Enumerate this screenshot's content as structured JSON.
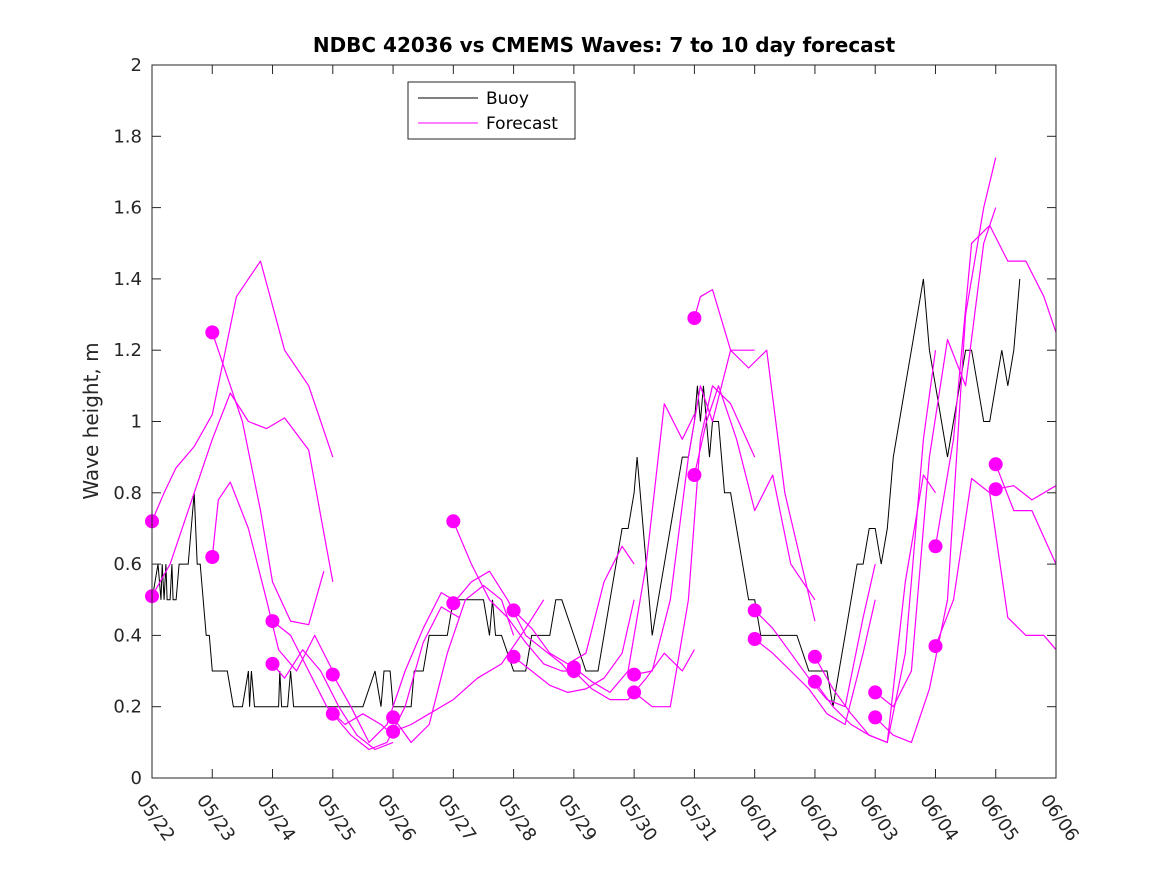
{
  "chart_data": {
    "type": "line",
    "title": "NDBC 42036 vs CMEMS Waves: 7 to 10 day forecast",
    "xlabel": "",
    "ylabel": "Wave height, m",
    "xlim": [
      0,
      15
    ],
    "ylim": [
      0,
      2
    ],
    "x_unit": "days from 05/22 00:00",
    "xticks": [
      0,
      1,
      2,
      3,
      4,
      5,
      6,
      7,
      8,
      9,
      10,
      11,
      12,
      13,
      14,
      15
    ],
    "xtick_labels": [
      "05/22",
      "05/23",
      "05/24",
      "05/25",
      "05/26",
      "05/27",
      "05/28",
      "05/29",
      "05/30",
      "05/31",
      "06/01",
      "06/02",
      "06/03",
      "06/04",
      "06/05",
      "06/06"
    ],
    "yticks": [
      0,
      0.2,
      0.4,
      0.6,
      0.8,
      1,
      1.2,
      1.4,
      1.6,
      1.8,
      2
    ],
    "ytick_labels": [
      "0",
      "0.2",
      "0.4",
      "0.6",
      "0.8",
      "1",
      "1.2",
      "1.4",
      "1.6",
      "1.8",
      "2"
    ],
    "grid": false,
    "legend": {
      "position": "top-center",
      "entries": [
        "Buoy",
        "Forecast"
      ]
    },
    "colors": {
      "buoy": "#000000",
      "forecast": "#ff00ff",
      "axes": "#262626"
    },
    "buoy": {
      "name": "Buoy",
      "x": [
        0.0,
        0.1,
        0.15,
        0.17,
        0.2,
        0.23,
        0.25,
        0.28,
        0.3,
        0.33,
        0.35,
        0.4,
        0.45,
        0.5,
        0.55,
        0.6,
        0.65,
        0.7,
        0.75,
        0.8,
        0.85,
        0.9,
        0.95,
        1.0,
        1.05,
        1.1,
        1.25,
        1.35,
        1.5,
        1.6,
        1.62,
        1.65,
        1.7,
        1.8,
        1.9,
        2.0,
        2.1,
        2.12,
        2.15,
        2.2,
        2.25,
        2.3,
        2.35,
        2.5,
        2.7,
        2.9,
        3.0,
        3.2,
        3.5,
        3.7,
        3.8,
        3.85,
        3.95,
        4.0,
        4.05,
        4.1,
        4.2,
        4.3,
        4.35,
        4.4,
        4.5,
        4.6,
        4.7,
        4.8,
        4.9,
        5.0,
        5.3,
        5.5,
        5.6,
        5.65,
        5.7,
        5.8,
        6.0,
        6.1,
        6.2,
        6.3,
        6.4,
        6.5,
        6.6,
        6.7,
        6.8,
        7.0,
        7.2,
        7.4,
        7.5,
        7.6,
        7.8,
        7.9,
        8.0,
        8.05,
        8.1,
        8.15,
        8.2,
        8.25,
        8.3,
        8.4,
        8.5,
        8.6,
        8.7,
        8.8,
        8.9,
        9.0,
        9.05,
        9.1,
        9.15,
        9.2,
        9.25,
        9.3,
        9.35,
        9.4,
        9.45,
        9.5,
        9.6,
        9.7,
        9.8,
        9.9,
        10.0,
        10.1,
        10.3,
        10.5,
        10.7,
        10.9,
        11.1,
        11.2,
        11.3,
        11.4,
        11.5,
        11.6,
        11.7,
        11.8,
        11.9,
        12.0,
        12.1,
        12.2,
        12.3,
        12.4,
        12.5,
        12.6,
        12.7,
        12.8,
        12.9,
        13.0,
        13.1,
        13.2,
        13.3,
        13.4,
        13.5,
        13.6,
        13.7,
        13.8,
        13.9,
        14.0,
        14.1,
        14.2,
        14.3,
        14.35,
        14.4
      ],
      "y": [
        0.5,
        0.6,
        0.5,
        0.6,
        0.5,
        0.6,
        0.5,
        0.5,
        0.5,
        0.6,
        0.5,
        0.5,
        0.6,
        0.6,
        0.6,
        0.6,
        0.7,
        0.8,
        0.6,
        0.6,
        0.5,
        0.4,
        0.4,
        0.3,
        0.3,
        0.3,
        0.3,
        0.2,
        0.2,
        0.3,
        0.2,
        0.3,
        0.2,
        0.2,
        0.2,
        0.2,
        0.2,
        0.3,
        0.2,
        0.2,
        0.2,
        0.3,
        0.2,
        0.2,
        0.2,
        0.2,
        0.2,
        0.2,
        0.2,
        0.3,
        0.2,
        0.3,
        0.3,
        0.2,
        0.2,
        0.2,
        0.2,
        0.2,
        0.3,
        0.3,
        0.3,
        0.4,
        0.4,
        0.4,
        0.4,
        0.5,
        0.5,
        0.5,
        0.4,
        0.5,
        0.4,
        0.4,
        0.3,
        0.3,
        0.3,
        0.4,
        0.4,
        0.4,
        0.4,
        0.5,
        0.5,
        0.4,
        0.3,
        0.3,
        0.4,
        0.5,
        0.7,
        0.7,
        0.8,
        0.9,
        0.8,
        0.7,
        0.6,
        0.5,
        0.4,
        0.5,
        0.6,
        0.7,
        0.8,
        0.9,
        0.9,
        1.0,
        1.1,
        1.0,
        1.1,
        1.0,
        0.9,
        1.0,
        1.0,
        1.0,
        0.9,
        0.8,
        0.8,
        0.7,
        0.6,
        0.5,
        0.5,
        0.4,
        0.4,
        0.4,
        0.4,
        0.3,
        0.3,
        0.3,
        0.2,
        0.3,
        0.4,
        0.5,
        0.6,
        0.6,
        0.7,
        0.7,
        0.6,
        0.7,
        0.9,
        1.0,
        1.1,
        1.2,
        1.3,
        1.4,
        1.2,
        1.1,
        1.0,
        0.9,
        1.0,
        1.1,
        1.2,
        1.2,
        1.1,
        1.0,
        1.0,
        1.1,
        1.2,
        1.1,
        1.2,
        1.3,
        1.4
      ]
    },
    "forecasts": [
      {
        "x": [
          0.0,
          0.2,
          0.4,
          0.7,
          1.0,
          1.4,
          1.8,
          2.2,
          2.6,
          3.0
        ],
        "y": [
          0.72,
          0.8,
          0.87,
          0.93,
          1.02,
          1.35,
          1.45,
          1.2,
          1.1,
          0.9
        ]
      },
      {
        "x": [
          0.0,
          0.3,
          0.6,
          1.0,
          1.3,
          1.6,
          1.9,
          2.2,
          2.6,
          3.0
        ],
        "y": [
          0.51,
          0.6,
          0.75,
          0.95,
          1.08,
          1.0,
          0.98,
          1.01,
          0.92,
          0.55
        ]
      },
      {
        "x": [
          1.0,
          1.2,
          1.5,
          1.8,
          2.0,
          2.3,
          2.6,
          2.85
        ],
        "y": [
          1.25,
          1.15,
          1.0,
          0.75,
          0.55,
          0.44,
          0.43,
          0.58
        ]
      },
      {
        "x": [
          1.0,
          1.1,
          1.3,
          1.6,
          1.9,
          2.1,
          2.4,
          2.7,
          3.0
        ],
        "y": [
          0.62,
          0.78,
          0.83,
          0.7,
          0.5,
          0.36,
          0.3,
          0.4,
          0.3
        ]
      },
      {
        "x": [
          2.0,
          2.3,
          2.6,
          2.9,
          3.2,
          3.5,
          3.8,
          4.0
        ],
        "y": [
          0.44,
          0.4,
          0.3,
          0.2,
          0.15,
          0.18,
          0.15,
          0.12
        ]
      },
      {
        "x": [
          2.0,
          2.2,
          2.5,
          2.8,
          3.1,
          3.4,
          3.7,
          4.0
        ],
        "y": [
          0.32,
          0.28,
          0.36,
          0.3,
          0.2,
          0.12,
          0.08,
          0.1
        ]
      },
      {
        "x": [
          3.0,
          3.3,
          3.6,
          3.9,
          4.2,
          4.5,
          4.8,
          5.0
        ],
        "y": [
          0.29,
          0.2,
          0.1,
          0.15,
          0.3,
          0.42,
          0.52,
          0.5
        ]
      },
      {
        "x": [
          3.0,
          3.3,
          3.6,
          3.9,
          4.2,
          4.5,
          4.8,
          5.1
        ],
        "y": [
          0.18,
          0.12,
          0.08,
          0.1,
          0.2,
          0.38,
          0.48,
          0.45
        ]
      },
      {
        "x": [
          4.0,
          4.3,
          4.6,
          4.9,
          5.2,
          5.5,
          5.8,
          6.0
        ],
        "y": [
          0.17,
          0.1,
          0.15,
          0.35,
          0.5,
          0.54,
          0.5,
          0.4
        ]
      },
      {
        "x": [
          4.0,
          4.3,
          4.6,
          5.0,
          5.4,
          5.8,
          6.2,
          6.5
        ],
        "y": [
          0.13,
          0.15,
          0.18,
          0.22,
          0.28,
          0.32,
          0.42,
          0.5
        ]
      },
      {
        "x": [
          5.0,
          5.3,
          5.6,
          5.9,
          6.2,
          6.5,
          6.8,
          7.0
        ],
        "y": [
          0.72,
          0.6,
          0.5,
          0.45,
          0.38,
          0.32,
          0.3,
          0.3
        ]
      },
      {
        "x": [
          5.0,
          5.3,
          5.6,
          5.9,
          6.2,
          6.5,
          6.8,
          7.0
        ],
        "y": [
          0.49,
          0.55,
          0.58,
          0.5,
          0.4,
          0.36,
          0.32,
          0.28
        ]
      },
      {
        "x": [
          6.0,
          6.3,
          6.6,
          6.9,
          7.2,
          7.5,
          7.8,
          8.0
        ],
        "y": [
          0.47,
          0.42,
          0.35,
          0.32,
          0.35,
          0.55,
          0.65,
          0.6
        ]
      },
      {
        "x": [
          6.0,
          6.3,
          6.6,
          6.9,
          7.2,
          7.5,
          7.8,
          8.0
        ],
        "y": [
          0.34,
          0.3,
          0.26,
          0.24,
          0.25,
          0.28,
          0.35,
          0.5
        ]
      },
      {
        "x": [
          7.0,
          7.3,
          7.6,
          7.9,
          8.2,
          8.5,
          8.8,
          9.0
        ],
        "y": [
          0.31,
          0.27,
          0.24,
          0.3,
          0.6,
          1.05,
          0.95,
          1.02
        ]
      },
      {
        "x": [
          7.0,
          7.3,
          7.6,
          7.9,
          8.2,
          8.5,
          8.8,
          9.0
        ],
        "y": [
          0.3,
          0.25,
          0.22,
          0.22,
          0.28,
          0.35,
          0.3,
          0.36
        ]
      },
      {
        "x": [
          8.0,
          8.3,
          8.6,
          8.9,
          9.1,
          9.3,
          9.6,
          10.0
        ],
        "y": [
          0.29,
          0.3,
          0.5,
          0.9,
          1.1,
          1.0,
          1.2,
          1.2
        ]
      },
      {
        "x": [
          8.0,
          8.3,
          8.6,
          8.9,
          9.1,
          9.3,
          9.6,
          10.0
        ],
        "y": [
          0.24,
          0.2,
          0.2,
          0.5,
          0.95,
          1.1,
          1.05,
          0.9
        ]
      },
      {
        "x": [
          9.0,
          9.1,
          9.3,
          9.6,
          9.9,
          10.2,
          10.5,
          11.0
        ],
        "y": [
          1.29,
          1.35,
          1.37,
          1.2,
          1.15,
          1.2,
          0.8,
          0.44
        ]
      },
      {
        "x": [
          9.0,
          9.2,
          9.4,
          9.7,
          10.0,
          10.3,
          10.6,
          11.0
        ],
        "y": [
          0.85,
          1.0,
          1.1,
          0.95,
          0.75,
          0.85,
          0.6,
          0.5
        ]
      },
      {
        "x": [
          10.0,
          10.3,
          10.6,
          10.9,
          11.2,
          11.5,
          11.8,
          12.0
        ],
        "y": [
          0.47,
          0.42,
          0.35,
          0.28,
          0.22,
          0.2,
          0.45,
          0.6
        ]
      },
      {
        "x": [
          10.0,
          10.3,
          10.6,
          10.9,
          11.2,
          11.5,
          11.8,
          12.0
        ],
        "y": [
          0.39,
          0.35,
          0.3,
          0.25,
          0.18,
          0.15,
          0.35,
          0.5
        ]
      },
      {
        "x": [
          11.0,
          11.3,
          11.6,
          11.9,
          12.2,
          12.5,
          12.8,
          13.0
        ],
        "y": [
          0.34,
          0.25,
          0.18,
          0.12,
          0.1,
          0.55,
          0.85,
          0.8
        ]
      },
      {
        "x": [
          11.0,
          11.3,
          11.6,
          11.9,
          12.2,
          12.5,
          12.8,
          13.0
        ],
        "y": [
          0.27,
          0.2,
          0.15,
          0.12,
          0.1,
          0.35,
          0.95,
          1.2
        ]
      },
      {
        "x": [
          12.0,
          12.3,
          12.6,
          12.9,
          13.2,
          13.5,
          13.8,
          14.0
        ],
        "y": [
          0.24,
          0.2,
          0.3,
          0.9,
          1.23,
          1.1,
          1.5,
          1.6
        ]
      },
      {
        "x": [
          12.0,
          12.3,
          12.6,
          12.9,
          13.2,
          13.5,
          13.8,
          14.0
        ],
        "y": [
          0.17,
          0.12,
          0.1,
          0.25,
          0.5,
          1.3,
          1.6,
          1.74
        ]
      },
      {
        "x": [
          13.0,
          13.3,
          13.6,
          13.9,
          14.2,
          14.5,
          14.8,
          15.0
        ],
        "y": [
          0.65,
          0.95,
          1.5,
          1.55,
          1.45,
          1.45,
          1.35,
          1.25
        ]
      },
      {
        "x": [
          13.0,
          13.3,
          13.6,
          13.9,
          14.2,
          14.5,
          14.8,
          15.0
        ],
        "y": [
          0.37,
          0.5,
          0.84,
          0.8,
          0.45,
          0.4,
          0.4,
          0.36
        ]
      },
      {
        "x": [
          14.0,
          14.3,
          14.6,
          15.0
        ],
        "y": [
          0.88,
          0.75,
          0.75,
          0.6
        ]
      },
      {
        "x": [
          14.0,
          14.3,
          14.6,
          15.0
        ],
        "y": [
          0.81,
          0.82,
          0.78,
          0.82
        ]
      }
    ]
  }
}
